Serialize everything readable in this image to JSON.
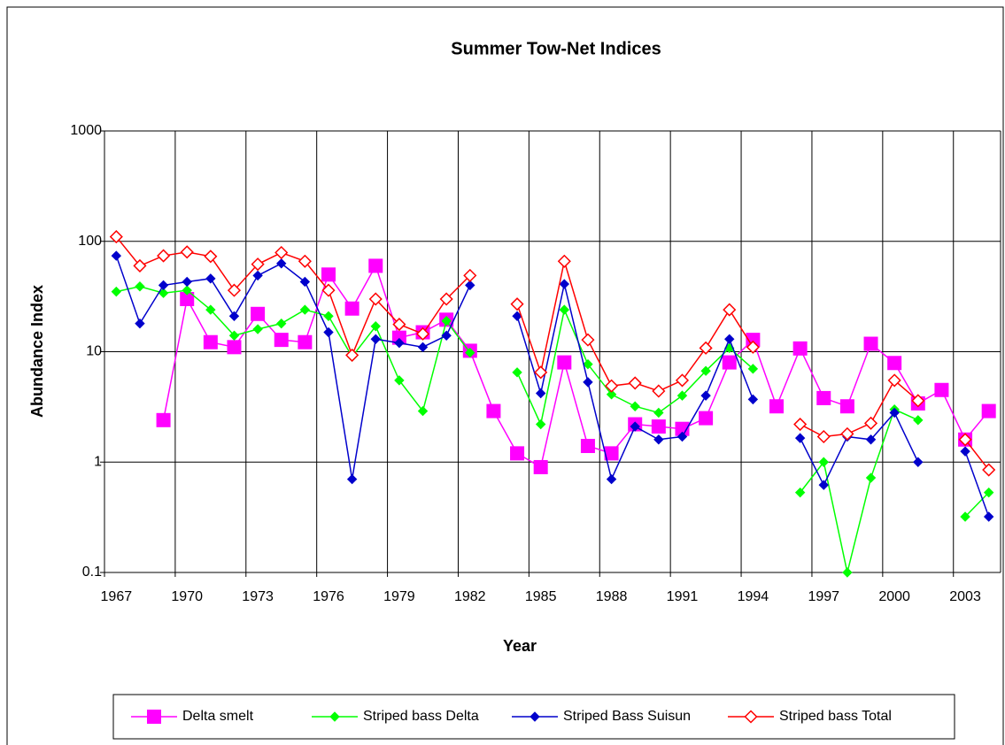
{
  "chart_data": {
    "type": "line",
    "title": "Summer Tow-Net Indices",
    "x_label": "Year",
    "y_label": "Abundance Index",
    "x": [
      1967,
      1968,
      1969,
      1970,
      1971,
      1972,
      1973,
      1974,
      1975,
      1976,
      1977,
      1978,
      1979,
      1980,
      1981,
      1982,
      1983,
      1984,
      1985,
      1986,
      1987,
      1988,
      1989,
      1990,
      1991,
      1992,
      1993,
      1994,
      1995,
      1996,
      1997,
      1998,
      1999,
      2000,
      2001,
      2002,
      2003,
      2004
    ],
    "xlim": [
      1966.5,
      2004.5
    ],
    "xticks": [
      1967,
      1970,
      1973,
      1976,
      1979,
      1982,
      1985,
      1988,
      1991,
      1994,
      1997,
      2000,
      2003
    ],
    "ylim": [
      0.1,
      1000
    ],
    "yticks": [
      0.1,
      1,
      10,
      100,
      1000
    ],
    "log_y": true,
    "grid": true,
    "legend": "bottom",
    "series": [
      {
        "name": "Delta smelt",
        "color": "#ff00ff",
        "marker": "square",
        "values": [
          null,
          null,
          2.4,
          30,
          12.2,
          11,
          22,
          12.8,
          12.2,
          50,
          24.6,
          60,
          13.4,
          15,
          19.5,
          10.2,
          2.9,
          1.2,
          0.9,
          8,
          1.4,
          1.2,
          2.2,
          2.1,
          2.0,
          2.5,
          8,
          12.8,
          3.2,
          10.7,
          3.8,
          3.2,
          11.8,
          7.9,
          3.4,
          4.5,
          1.6,
          2.9
        ]
      },
      {
        "name": "Striped bass Delta",
        "color": "#00ff00",
        "marker": "diamond",
        "values": [
          35,
          39,
          34,
          36,
          24,
          14,
          16,
          18,
          24,
          21,
          9,
          17,
          5.5,
          2.9,
          19,
          9.8,
          null,
          6.5,
          2.2,
          24,
          7.7,
          4.1,
          3.2,
          2.8,
          4,
          6.7,
          10.8,
          7,
          null,
          0.53,
          1.0,
          0.1,
          0.72,
          3.0,
          2.4,
          null,
          0.32,
          0.53
        ]
      },
      {
        "name": "Striped Bass Suisun",
        "color": "#0000cc",
        "marker": "diamond",
        "values": [
          74,
          18,
          40,
          43,
          46,
          21,
          49,
          63,
          43,
          15,
          0.7,
          13,
          12,
          11,
          14,
          40,
          null,
          21,
          4.2,
          41,
          5.3,
          0.7,
          2.1,
          1.6,
          1.7,
          4,
          13,
          3.7,
          null,
          1.65,
          0.62,
          1.7,
          1.6,
          2.8,
          1.0,
          null,
          1.25,
          0.32
        ]
      },
      {
        "name": "Striped bass Total",
        "color": "#ff0000",
        "marker": "hollow-diamond",
        "values": [
          110,
          60,
          74,
          80,
          73,
          36,
          62,
          79,
          66,
          36,
          9.3,
          30,
          17.7,
          14.5,
          30,
          49,
          null,
          27,
          6.5,
          66,
          12.8,
          4.9,
          5.2,
          4.4,
          5.5,
          10.8,
          24,
          11,
          null,
          2.2,
          1.7,
          1.8,
          2.25,
          5.5,
          3.6,
          null,
          1.6,
          0.85
        ]
      }
    ]
  }
}
